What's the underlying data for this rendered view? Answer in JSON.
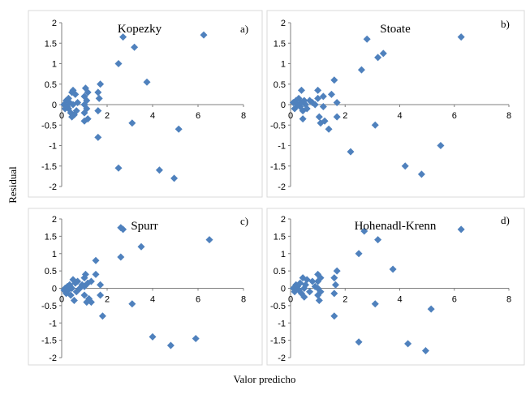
{
  "figure": {
    "ylabel": "Residual",
    "xlabel": "Valor predicho",
    "marker_color": "#4F81BD"
  },
  "chart_data": [
    {
      "type": "scatter",
      "title": "Kopezky",
      "tag": "a)",
      "xlim": [
        0,
        8
      ],
      "ylim": [
        -2,
        2
      ],
      "xticks": [
        "0",
        "2",
        "4",
        "6",
        "8"
      ],
      "yticks": [
        "-2",
        "-1.5",
        "-1",
        "-0.5",
        "0",
        "0.5",
        "1",
        "1.5",
        "2"
      ],
      "grid": false,
      "points": [
        {
          "x": 0.1,
          "y": 0.0
        },
        {
          "x": 0.15,
          "y": -0.1
        },
        {
          "x": 0.2,
          "y": 0.1
        },
        {
          "x": 0.25,
          "y": -0.05
        },
        {
          "x": 0.3,
          "y": 0.15
        },
        {
          "x": 0.35,
          "y": 0.05
        },
        {
          "x": 0.4,
          "y": -0.2
        },
        {
          "x": 0.45,
          "y": 0.3
        },
        {
          "x": 0.5,
          "y": 0.0
        },
        {
          "x": 0.55,
          "y": -0.25
        },
        {
          "x": 0.6,
          "y": 0.25
        },
        {
          "x": 0.65,
          "y": -0.15
        },
        {
          "x": 0.7,
          "y": 0.05
        },
        {
          "x": 0.5,
          "y": 0.35
        },
        {
          "x": 0.3,
          "y": -0.1
        },
        {
          "x": 0.45,
          "y": -0.3
        },
        {
          "x": 1.0,
          "y": 0.2
        },
        {
          "x": 1.0,
          "y": 0.0
        },
        {
          "x": 1.0,
          "y": -0.2
        },
        {
          "x": 1.0,
          "y": -0.4
        },
        {
          "x": 1.05,
          "y": 0.4
        },
        {
          "x": 1.1,
          "y": 0.1
        },
        {
          "x": 1.15,
          "y": 0.3
        },
        {
          "x": 1.1,
          "y": -0.1
        },
        {
          "x": 1.15,
          "y": -0.35
        },
        {
          "x": 1.6,
          "y": 0.3
        },
        {
          "x": 1.6,
          "y": -0.15
        },
        {
          "x": 1.65,
          "y": 0.15
        },
        {
          "x": 1.7,
          "y": 0.5
        },
        {
          "x": 1.6,
          "y": -0.8
        },
        {
          "x": 2.5,
          "y": 1.0
        },
        {
          "x": 2.7,
          "y": 1.65
        },
        {
          "x": 3.1,
          "y": -0.45
        },
        {
          "x": 3.2,
          "y": 1.4
        },
        {
          "x": 2.5,
          "y": -1.55
        },
        {
          "x": 3.75,
          "y": 0.55
        },
        {
          "x": 4.3,
          "y": -1.6
        },
        {
          "x": 4.95,
          "y": -1.8
        },
        {
          "x": 5.15,
          "y": -0.6
        },
        {
          "x": 6.25,
          "y": 1.7
        }
      ]
    },
    {
      "type": "scatter",
      "title": "Stoate",
      "tag": "b)",
      "xlim": [
        0,
        8
      ],
      "ylim": [
        -2,
        2
      ],
      "xticks": [
        "0",
        "2",
        "4",
        "6",
        "8"
      ],
      "yticks": [
        "-2",
        "-1.5",
        "-1",
        "-0.5",
        "0",
        "0.5",
        "1",
        "1.5",
        "2"
      ],
      "grid": false,
      "points": [
        {
          "x": 0.1,
          "y": 0.05
        },
        {
          "x": 0.15,
          "y": -0.1
        },
        {
          "x": 0.2,
          "y": 0.1
        },
        {
          "x": 0.25,
          "y": 0.0
        },
        {
          "x": 0.3,
          "y": 0.15
        },
        {
          "x": 0.35,
          "y": -0.05
        },
        {
          "x": 0.4,
          "y": 0.05
        },
        {
          "x": 0.45,
          "y": -0.15
        },
        {
          "x": 0.5,
          "y": 0.1
        },
        {
          "x": 0.55,
          "y": 0.0
        },
        {
          "x": 0.4,
          "y": 0.35
        },
        {
          "x": 0.45,
          "y": -0.35
        },
        {
          "x": 0.6,
          "y": -0.1
        },
        {
          "x": 0.7,
          "y": 0.1
        },
        {
          "x": 0.8,
          "y": 0.05
        },
        {
          "x": 0.9,
          "y": 0.0
        },
        {
          "x": 1.0,
          "y": 0.35
        },
        {
          "x": 1.0,
          "y": 0.15
        },
        {
          "x": 1.05,
          "y": -0.3
        },
        {
          "x": 1.1,
          "y": -0.45
        },
        {
          "x": 1.2,
          "y": 0.2
        },
        {
          "x": 1.2,
          "y": -0.05
        },
        {
          "x": 1.25,
          "y": -0.4
        },
        {
          "x": 1.4,
          "y": -0.6
        },
        {
          "x": 1.5,
          "y": 0.25
        },
        {
          "x": 1.6,
          "y": 0.6
        },
        {
          "x": 1.7,
          "y": 0.05
        },
        {
          "x": 1.7,
          "y": -0.3
        },
        {
          "x": 2.2,
          "y": -1.15
        },
        {
          "x": 2.6,
          "y": 0.85
        },
        {
          "x": 2.8,
          "y": 1.6
        },
        {
          "x": 3.1,
          "y": -0.5
        },
        {
          "x": 3.2,
          "y": 1.15
        },
        {
          "x": 3.4,
          "y": 1.25
        },
        {
          "x": 4.2,
          "y": -1.5
        },
        {
          "x": 4.8,
          "y": -1.7
        },
        {
          "x": 5.5,
          "y": -1.0
        },
        {
          "x": 6.25,
          "y": 1.65
        }
      ]
    },
    {
      "type": "scatter",
      "title": "Spurr",
      "tag": "c)",
      "xlim": [
        0,
        8
      ],
      "ylim": [
        -2,
        2
      ],
      "xticks": [
        "0",
        "2",
        "4",
        "6",
        "8"
      ],
      "yticks": [
        "-2",
        "-1.5",
        "-1",
        "-0.5",
        "0",
        "0.5",
        "1",
        "1.5",
        "2"
      ],
      "grid": false,
      "points": [
        {
          "x": 0.1,
          "y": -0.05
        },
        {
          "x": 0.15,
          "y": 0.0
        },
        {
          "x": 0.2,
          "y": -0.15
        },
        {
          "x": 0.25,
          "y": 0.05
        },
        {
          "x": 0.3,
          "y": -0.05
        },
        {
          "x": 0.35,
          "y": 0.1
        },
        {
          "x": 0.4,
          "y": -0.2
        },
        {
          "x": 0.45,
          "y": 0.0
        },
        {
          "x": 0.5,
          "y": 0.25
        },
        {
          "x": 0.55,
          "y": -0.35
        },
        {
          "x": 0.6,
          "y": 0.15
        },
        {
          "x": 0.65,
          "y": -0.1
        },
        {
          "x": 0.7,
          "y": 0.2
        },
        {
          "x": 0.3,
          "y": 0.05
        },
        {
          "x": 0.8,
          "y": 0.0
        },
        {
          "x": 0.9,
          "y": 0.1
        },
        {
          "x": 1.0,
          "y": 0.3
        },
        {
          "x": 1.0,
          "y": 0.05
        },
        {
          "x": 1.0,
          "y": -0.2
        },
        {
          "x": 1.05,
          "y": 0.4
        },
        {
          "x": 1.1,
          "y": -0.4
        },
        {
          "x": 1.15,
          "y": 0.15
        },
        {
          "x": 1.2,
          "y": -0.3
        },
        {
          "x": 1.3,
          "y": 0.2
        },
        {
          "x": 1.3,
          "y": -0.4
        },
        {
          "x": 1.5,
          "y": 0.4
        },
        {
          "x": 1.5,
          "y": 0.8
        },
        {
          "x": 1.7,
          "y": 0.1
        },
        {
          "x": 1.7,
          "y": -0.2
        },
        {
          "x": 1.8,
          "y": -0.8
        },
        {
          "x": 2.6,
          "y": 0.9
        },
        {
          "x": 2.6,
          "y": 1.75
        },
        {
          "x": 2.7,
          "y": 1.7
        },
        {
          "x": 3.1,
          "y": -0.45
        },
        {
          "x": 3.5,
          "y": 1.2
        },
        {
          "x": 4.0,
          "y": -1.4
        },
        {
          "x": 4.8,
          "y": -1.65
        },
        {
          "x": 5.9,
          "y": -1.45
        },
        {
          "x": 6.5,
          "y": 1.4
        }
      ]
    },
    {
      "type": "scatter",
      "title": "Hohenadl-Krenn",
      "tag": "d)",
      "xlim": [
        0,
        8
      ],
      "ylim": [
        -2,
        2
      ],
      "xticks": [
        "0",
        "2",
        "4",
        "6",
        "8"
      ],
      "yticks": [
        "-2",
        "-1.5",
        "-1",
        "-0.5",
        "0",
        "0.5",
        "1",
        "1.5",
        "2"
      ],
      "grid": false,
      "points": [
        {
          "x": 0.1,
          "y": 0.0
        },
        {
          "x": 0.15,
          "y": -0.1
        },
        {
          "x": 0.2,
          "y": 0.1
        },
        {
          "x": 0.25,
          "y": 0.05
        },
        {
          "x": 0.3,
          "y": -0.05
        },
        {
          "x": 0.35,
          "y": 0.15
        },
        {
          "x": 0.4,
          "y": -0.15
        },
        {
          "x": 0.45,
          "y": 0.3
        },
        {
          "x": 0.5,
          "y": 0.0
        },
        {
          "x": 0.5,
          "y": -0.25
        },
        {
          "x": 0.55,
          "y": 0.1
        },
        {
          "x": 0.6,
          "y": 0.25
        },
        {
          "x": 0.7,
          "y": -0.1
        },
        {
          "x": 0.8,
          "y": 0.2
        },
        {
          "x": 0.9,
          "y": 0.05
        },
        {
          "x": 1.0,
          "y": 0.4
        },
        {
          "x": 1.0,
          "y": 0.2
        },
        {
          "x": 1.0,
          "y": 0.0
        },
        {
          "x": 1.0,
          "y": -0.2
        },
        {
          "x": 1.05,
          "y": -0.35
        },
        {
          "x": 1.1,
          "y": 0.3
        },
        {
          "x": 1.1,
          "y": -0.1
        },
        {
          "x": 1.6,
          "y": 0.3
        },
        {
          "x": 1.6,
          "y": -0.15
        },
        {
          "x": 1.65,
          "y": 0.1
        },
        {
          "x": 1.7,
          "y": 0.5
        },
        {
          "x": 1.6,
          "y": -0.8
        },
        {
          "x": 2.5,
          "y": 1.0
        },
        {
          "x": 2.7,
          "y": 1.65
        },
        {
          "x": 3.1,
          "y": -0.45
        },
        {
          "x": 3.2,
          "y": 1.4
        },
        {
          "x": 2.5,
          "y": -1.55
        },
        {
          "x": 3.75,
          "y": 0.55
        },
        {
          "x": 4.3,
          "y": -1.6
        },
        {
          "x": 4.95,
          "y": -1.8
        },
        {
          "x": 5.15,
          "y": -0.6
        },
        {
          "x": 6.25,
          "y": 1.7
        }
      ]
    }
  ]
}
